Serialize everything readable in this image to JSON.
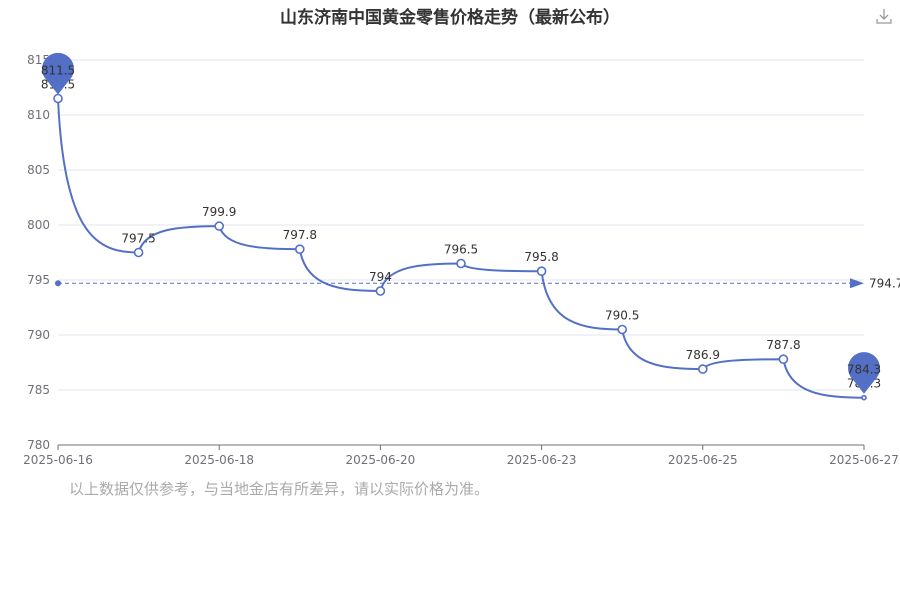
{
  "title": "山东济南中国黄金零售价格走势（最新公布）",
  "toolbar": {
    "download_icon": "download-icon"
  },
  "note": "以上数据仅供参考，与当地金店有所差异，请以实际价格为准。",
  "colors": {
    "series": "#5470c6",
    "grid": "#e0e6f1",
    "axis": "#6e7079",
    "faded_label": "#aaaaaa"
  },
  "chart_data": {
    "type": "line",
    "smooth": true,
    "ylim": [
      780,
      815
    ],
    "yticks": [
      780,
      785,
      790,
      795,
      800,
      805,
      810,
      815
    ],
    "xticks": [
      "2025-06-16",
      "2025-06-18",
      "2025-06-20",
      "2025-06-23",
      "2025-06-25",
      "2025-06-27"
    ],
    "series": [
      {
        "values": [
          811.5,
          797.5,
          799.9,
          797.8,
          794,
          796.5,
          795.8,
          790.5,
          786.9,
          787.8,
          784.3
        ]
      }
    ],
    "mark_points": {
      "max": 811.5,
      "min": 784.3
    },
    "mark_line": {
      "type": "average",
      "value": 794.7
    },
    "grid": true,
    "legend": "none"
  }
}
